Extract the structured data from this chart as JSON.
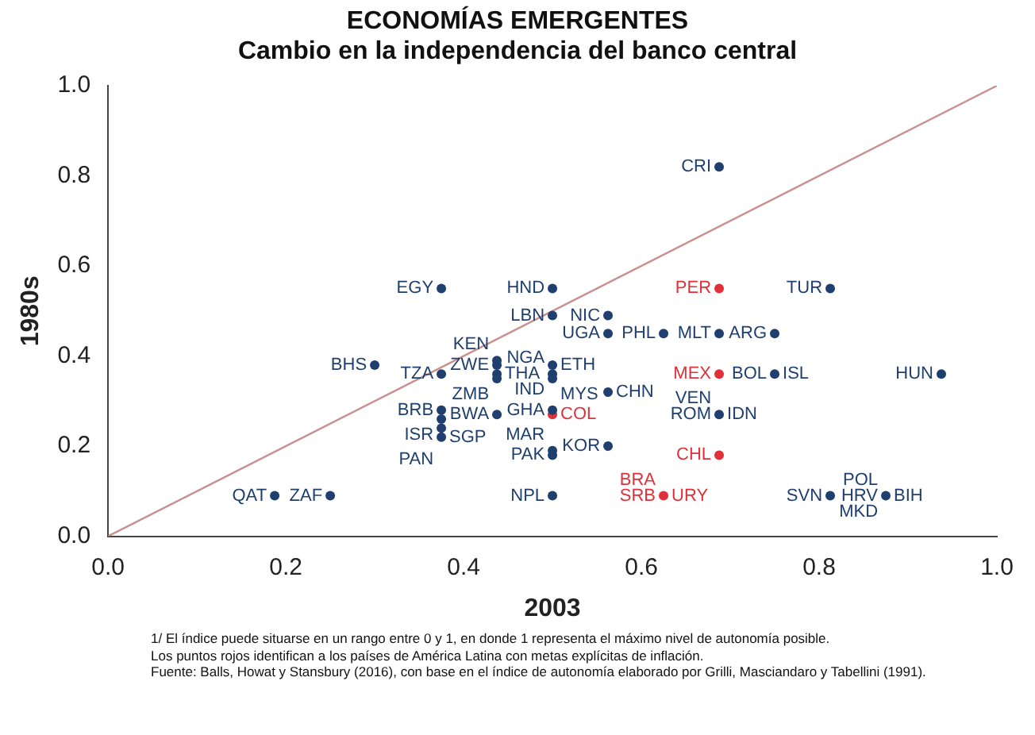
{
  "chart_data": {
    "type": "scatter",
    "title": "ECONOMÍAS EMERGENTES",
    "subtitle": "Cambio en la independencia del banco central",
    "xlabel": "2003",
    "ylabel": "1980s",
    "xlim": [
      0,
      1
    ],
    "ylim": [
      0,
      1
    ],
    "xticks": [
      {
        "value": 0,
        "label": "0.0"
      },
      0.2,
      0.4,
      0.6,
      0.8,
      {
        "value": 1,
        "label": "1.0"
      }
    ],
    "yticks": [
      {
        "value": 0,
        "label": "0.0"
      },
      0.2,
      0.4,
      0.6,
      0.8,
      {
        "value": 1,
        "label": "1.0"
      }
    ],
    "grid": false,
    "legend": false,
    "marker": "circle",
    "series": [
      {
        "color": "#1f3f6e",
        "x": [
          0.375,
          0.5,
          0.5,
          0.3,
          0.375,
          0.4375,
          0.4375,
          0.4375,
          0.4375,
          0.5,
          0.5,
          0.5,
          0.5625,
          0.5625,
          0.5625,
          0.625,
          0.6875,
          0.75,
          0.6875,
          0.8125,
          0.75,
          0.9375,
          0.6875,
          0.4375,
          0.5,
          0.375,
          0.375,
          0.375,
          0.375,
          0.5625,
          0.5,
          0.5,
          0.5,
          0.8125,
          0.875,
          0.1875,
          0.25
        ],
        "values": [
          0.55,
          0.55,
          0.49,
          0.38,
          0.36,
          0.38,
          0.36,
          0.39,
          0.35,
          0.38,
          0.36,
          0.35,
          0.32,
          0.45,
          0.49,
          0.45,
          0.45,
          0.45,
          0.82,
          0.55,
          0.36,
          0.36,
          0.27,
          0.27,
          0.28,
          0.28,
          0.26,
          0.22,
          0.24,
          0.2,
          0.18,
          0.19,
          0.09,
          0.09,
          0.09,
          0.09,
          0.09
        ]
      },
      {
        "color": "#e0303a",
        "x": [
          0.6875,
          0.6875,
          0.5,
          0.6875,
          0.625
        ],
        "values": [
          0.55,
          0.36,
          0.27,
          0.18,
          0.09
        ]
      },
      {
        "type": "line",
        "color": "#c89090",
        "x": [
          0,
          1
        ],
        "values": [
          0,
          1
        ],
        "marker": "none"
      }
    ],
    "annotations": [
      {
        "text": "EGY",
        "x": 0.375,
        "y": 0.55
      },
      {
        "text": "HND",
        "x": 0.5,
        "y": 0.55
      },
      {
        "text": "LBN",
        "x": 0.5,
        "y": 0.49
      },
      {
        "text": "BHS",
        "x": 0.3,
        "y": 0.38
      },
      {
        "text": "TZA",
        "x": 0.375,
        "y": 0.36
      },
      {
        "text": "ZWE",
        "x": 0.4375,
        "y": 0.38
      },
      {
        "text": "THA",
        "x": 0.4375,
        "y": 0.36
      },
      {
        "text": "KEN",
        "x": 0.4375,
        "y": 0.39
      },
      {
        "text": "ZMB",
        "x": 0.4375,
        "y": 0.35
      },
      {
        "text": "ETH",
        "x": 0.5,
        "y": 0.38
      },
      {
        "text": "NGA",
        "x": 0.5,
        "y": 0.36
      },
      {
        "text": "IND",
        "x": 0.5,
        "y": 0.36
      },
      {
        "text": "MYS",
        "x": 0.5,
        "y": 0.35
      },
      {
        "text": "CHN",
        "x": 0.5625,
        "y": 0.32
      },
      {
        "text": "UGA",
        "x": 0.5625,
        "y": 0.45
      },
      {
        "text": "NIC",
        "x": 0.5625,
        "y": 0.49
      },
      {
        "text": "PHL",
        "x": 0.625,
        "y": 0.45
      },
      {
        "text": "MLT",
        "x": 0.6875,
        "y": 0.45
      },
      {
        "text": "ARG",
        "x": 0.75,
        "y": 0.45
      },
      {
        "text": "CRI",
        "x": 0.6875,
        "y": 0.82
      },
      {
        "text": "TUR",
        "x": 0.8125,
        "y": 0.55
      },
      {
        "text": "BOL",
        "x": 0.75,
        "y": 0.36
      },
      {
        "text": "ISL",
        "x": 0.75,
        "y": 0.36
      },
      {
        "text": "HUN",
        "x": 0.9375,
        "y": 0.36
      },
      {
        "text": "ROM",
        "x": 0.6875,
        "y": 0.27
      },
      {
        "text": "IDN",
        "x": 0.6875,
        "y": 0.27
      },
      {
        "text": "VEN",
        "x": 0.6875,
        "y": 0.27
      },
      {
        "text": "BWA",
        "x": 0.4375,
        "y": 0.27
      },
      {
        "text": "GHA",
        "x": 0.5,
        "y": 0.28
      },
      {
        "text": "BRB",
        "x": 0.375,
        "y": 0.28
      },
      {
        "text": "ISR",
        "x": 0.375,
        "y": 0.26
      },
      {
        "text": "SGP",
        "x": 0.375,
        "y": 0.22
      },
      {
        "text": "PAN",
        "x": 0.375,
        "y": 0.24
      },
      {
        "text": "KOR",
        "x": 0.5625,
        "y": 0.2
      },
      {
        "text": "PAK",
        "x": 0.5,
        "y": 0.18
      },
      {
        "text": "MAR",
        "x": 0.5,
        "y": 0.19
      },
      {
        "text": "NPL",
        "x": 0.5,
        "y": 0.09
      },
      {
        "text": "SRB",
        "x": 0.625,
        "y": 0.09
      },
      {
        "text": "URY",
        "x": 0.625,
        "y": 0.09
      },
      {
        "text": "SVN",
        "x": 0.8125,
        "y": 0.09
      },
      {
        "text": "HRV",
        "x": 0.875,
        "y": 0.09
      },
      {
        "text": "BIH",
        "x": 0.875,
        "y": 0.09
      },
      {
        "text": "POL",
        "x": 0.875,
        "y": 0.09
      },
      {
        "text": "MKD",
        "x": 0.875,
        "y": 0.09
      },
      {
        "text": "QAT",
        "x": 0.1875,
        "y": 0.09
      },
      {
        "text": "ZAF",
        "x": 0.25,
        "y": 0.09
      },
      {
        "text": "PER",
        "x": 0.6875,
        "y": 0.55
      },
      {
        "text": "MEX",
        "x": 0.6875,
        "y": 0.36
      },
      {
        "text": "COL",
        "x": 0.5,
        "y": 0.27
      },
      {
        "text": "CHL",
        "x": 0.6875,
        "y": 0.18
      },
      {
        "text": "BRA",
        "x": 0.625,
        "y": 0.09
      },
      "1/ El índice puede situarse en un rango entre 0 y 1, en donde 1 representa el máximo nivel de autonomía posible.",
      "Los puntos rojos identifican a los países de América Latina con metas explícitas de inflación.",
      "Fuente: Balls, Howat y Stansbury (2016), con base en el índice de autonomía elaborado por Grilli, Masciandaro y Tabellini (1991)."
    ]
  }
}
